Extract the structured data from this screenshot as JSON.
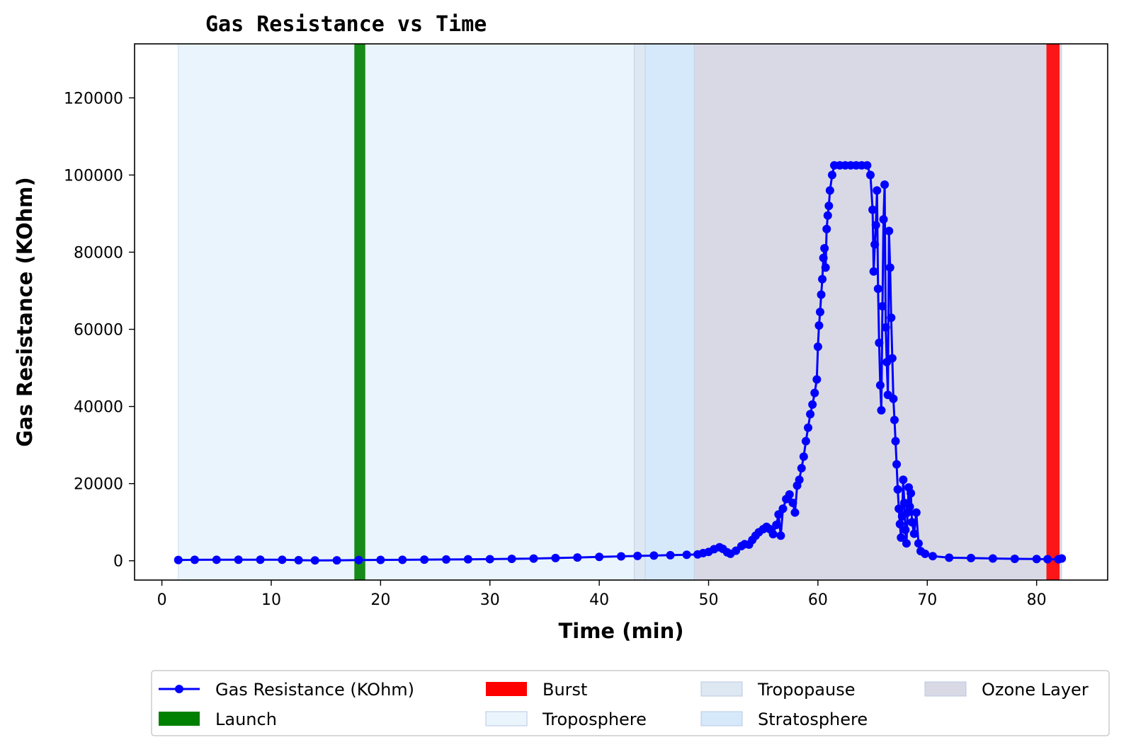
{
  "chart_data": {
    "type": "scatter",
    "title": "Gas Resistance vs Time",
    "xlabel": "Time (min)",
    "ylabel": "Gas Resistance (KOhm)",
    "xlim": [
      -2.5,
      86.5
    ],
    "ylim": [
      -5000,
      134000
    ],
    "xticks": [
      0,
      10,
      20,
      30,
      40,
      50,
      60,
      70,
      80
    ],
    "yticks": [
      0,
      20000,
      40000,
      60000,
      80000,
      100000,
      120000
    ],
    "grid": false,
    "legend_position": "bottom-outside",
    "series": [
      {
        "name": "Gas Resistance (KOhm)",
        "color": "#0000ff",
        "points": [
          [
            1.5,
            200
          ],
          [
            3,
            250
          ],
          [
            5,
            260
          ],
          [
            7,
            280
          ],
          [
            9,
            270
          ],
          [
            11,
            260
          ],
          [
            12.5,
            150
          ],
          [
            14,
            100
          ],
          [
            16,
            120
          ],
          [
            18,
            180
          ],
          [
            20,
            220
          ],
          [
            22,
            250
          ],
          [
            24,
            300
          ],
          [
            26,
            330
          ],
          [
            28,
            380
          ],
          [
            30,
            420
          ],
          [
            32,
            500
          ],
          [
            34,
            580
          ],
          [
            36,
            700
          ],
          [
            38,
            850
          ],
          [
            40,
            1000
          ],
          [
            42,
            1150
          ],
          [
            43.5,
            1250
          ],
          [
            45,
            1350
          ],
          [
            46.5,
            1450
          ],
          [
            48,
            1550
          ],
          [
            49,
            1650
          ],
          [
            49.5,
            2000
          ],
          [
            50,
            2300
          ],
          [
            50.5,
            3000
          ],
          [
            51,
            3500
          ],
          [
            51.3,
            3100
          ],
          [
            51.7,
            2200
          ],
          [
            52,
            1800
          ],
          [
            52.5,
            2600
          ],
          [
            53,
            3800
          ],
          [
            53.3,
            4300
          ],
          [
            53.7,
            4200
          ],
          [
            54,
            5400
          ],
          [
            54.3,
            6500
          ],
          [
            54.6,
            7400
          ],
          [
            55,
            8200
          ],
          [
            55.3,
            8800
          ],
          [
            55.6,
            8200
          ],
          [
            55.9,
            6900
          ],
          [
            56.2,
            9300
          ],
          [
            56.4,
            12000
          ],
          [
            56.6,
            6500
          ],
          [
            56.8,
            13500
          ],
          [
            57.1,
            16000
          ],
          [
            57.4,
            17200
          ],
          [
            57.7,
            15000
          ],
          [
            57.9,
            12500
          ],
          [
            58.1,
            19500
          ],
          [
            58.3,
            21000
          ],
          [
            58.5,
            24000
          ],
          [
            58.7,
            27000
          ],
          [
            58.9,
            31000
          ],
          [
            59.1,
            34500
          ],
          [
            59.3,
            38000
          ],
          [
            59.5,
            40500
          ],
          [
            59.7,
            43500
          ],
          [
            59.9,
            47000
          ],
          [
            60,
            55500
          ],
          [
            60.1,
            61000
          ],
          [
            60.2,
            64500
          ],
          [
            60.3,
            69000
          ],
          [
            60.4,
            73000
          ],
          [
            60.5,
            78500
          ],
          [
            60.6,
            81000
          ],
          [
            60.7,
            76000
          ],
          [
            60.8,
            86000
          ],
          [
            60.9,
            89500
          ],
          [
            61,
            92000
          ],
          [
            61.1,
            96000
          ],
          [
            61.3,
            100000
          ],
          [
            61.5,
            102500
          ],
          [
            62,
            102500
          ],
          [
            62.5,
            102500
          ],
          [
            63,
            102500
          ],
          [
            63.5,
            102500
          ],
          [
            64,
            102500
          ],
          [
            64.5,
            102500
          ],
          [
            64.8,
            100000
          ],
          [
            65,
            91000
          ],
          [
            65.1,
            75000
          ],
          [
            65.2,
            82000
          ],
          [
            65.3,
            87000
          ],
          [
            65.4,
            96000
          ],
          [
            65.5,
            70500
          ],
          [
            65.6,
            56500
          ],
          [
            65.7,
            45500
          ],
          [
            65.8,
            39000
          ],
          [
            65.9,
            66000
          ],
          [
            66,
            88500
          ],
          [
            66.1,
            97500
          ],
          [
            66.2,
            60500
          ],
          [
            66.3,
            51500
          ],
          [
            66.4,
            43000
          ],
          [
            66.5,
            85500
          ],
          [
            66.6,
            76000
          ],
          [
            66.7,
            63000
          ],
          [
            66.8,
            52500
          ],
          [
            66.9,
            42000
          ],
          [
            67,
            36500
          ],
          [
            67.1,
            31000
          ],
          [
            67.2,
            25000
          ],
          [
            67.3,
            18500
          ],
          [
            67.4,
            13500
          ],
          [
            67.5,
            9500
          ],
          [
            67.6,
            6000
          ],
          [
            67.7,
            11500
          ],
          [
            67.8,
            21000
          ],
          [
            67.9,
            15000
          ],
          [
            68,
            8000
          ],
          [
            68.1,
            4500
          ],
          [
            68.2,
            12500
          ],
          [
            68.3,
            19000
          ],
          [
            68.4,
            14000
          ],
          [
            68.5,
            17500
          ],
          [
            68.6,
            10000
          ],
          [
            68.8,
            7000
          ],
          [
            69,
            12500
          ],
          [
            69.2,
            4500
          ],
          [
            69.4,
            2500
          ],
          [
            69.8,
            1800
          ],
          [
            70.5,
            1200
          ],
          [
            72,
            800
          ],
          [
            74,
            700
          ],
          [
            76,
            600
          ],
          [
            78,
            500
          ],
          [
            80,
            450
          ],
          [
            81,
            400
          ],
          [
            82,
            380
          ],
          [
            82.3,
            600
          ]
        ]
      }
    ],
    "vertical_bands": [
      {
        "name": "Launch",
        "color": "#008000",
        "x": [
          17.6,
          18.6
        ]
      },
      {
        "name": "Burst",
        "color": "#ff0000",
        "x": [
          80.9,
          82.1
        ]
      },
      {
        "name": "Troposphere",
        "color": "#eaf4fc",
        "x": [
          1.5,
          43.2
        ]
      },
      {
        "name": "Tropopause",
        "color": "#dde8f3",
        "x": [
          43.2,
          44.2
        ]
      },
      {
        "name": "Stratosphere",
        "color": "#d6e9fb",
        "x": [
          44.2,
          48.7
        ]
      },
      {
        "name": "Ozone Layer",
        "color": "#d9d9e6",
        "x": [
          48.7,
          82.3
        ]
      }
    ],
    "legend": [
      {
        "label": "Gas Resistance (KOhm)",
        "kind": "line-marker",
        "color": "#0000ff"
      },
      {
        "label": "Launch",
        "kind": "patch",
        "color": "#008000"
      },
      {
        "label": "Burst",
        "kind": "patch",
        "color": "#ff0000"
      },
      {
        "label": "Troposphere",
        "kind": "patch",
        "color": "#eaf4fc"
      },
      {
        "label": "Tropopause",
        "kind": "patch",
        "color": "#dde8f3"
      },
      {
        "label": "Stratosphere",
        "kind": "patch",
        "color": "#d6e9fb"
      },
      {
        "label": "Ozone Layer",
        "kind": "patch",
        "color": "#d9d9e6"
      }
    ]
  }
}
